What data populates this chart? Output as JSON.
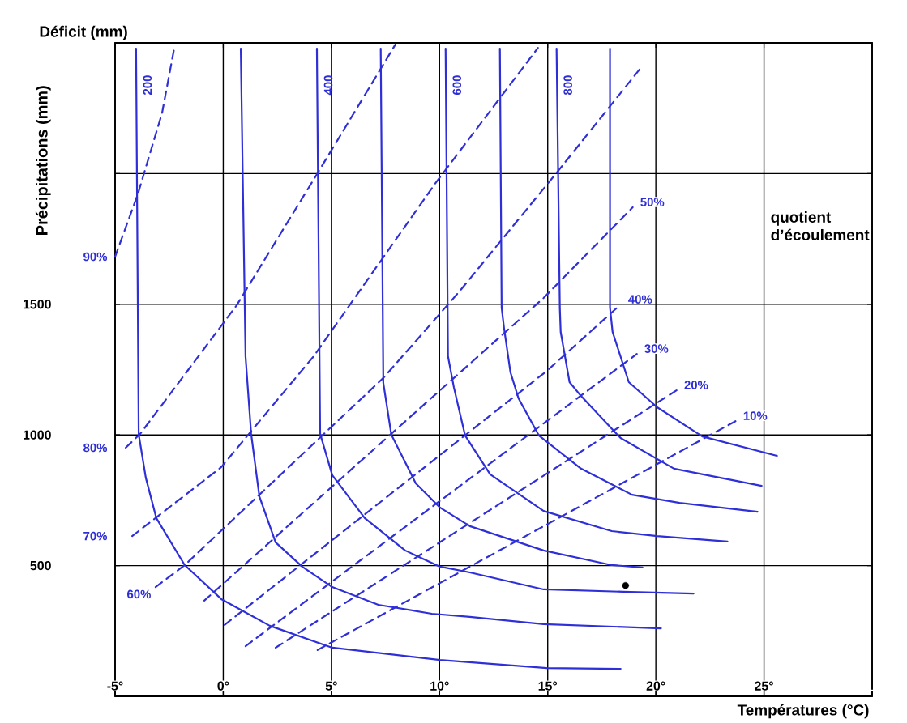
{
  "chart_data": {
    "type": "line",
    "xlabel": "Températures (°C)",
    "ylabel": "Précipitations (mm)",
    "annotations": [
      "Déficit (mm)",
      "quotient d’écoulement"
    ],
    "xlim": [
      -5,
      30
    ],
    "ylim": [
      0,
      2500
    ],
    "xticks": [
      {
        "value": -5,
        "label": "-5°"
      },
      {
        "value": 0,
        "label": "0°"
      },
      {
        "value": 5,
        "label": "5°"
      },
      {
        "value": 10,
        "label": "10°"
      },
      {
        "value": 15,
        "label": "15°"
      },
      {
        "value": 20,
        "label": "20°"
      },
      {
        "value": 25,
        "label": "25°"
      },
      {
        "value": 30,
        "label": null
      }
    ],
    "yticks": [
      {
        "value": 0,
        "label": null
      },
      500,
      1000,
      1500,
      {
        "value": 2000,
        "label": null
      },
      {
        "value": 2500,
        "label": null
      }
    ],
    "grid": true,
    "series": [
      {
        "name": "200",
        "color": "#2f2fd8",
        "line_style": "solid",
        "x": [
          -4.03,
          -3.91,
          -3.58,
          -3.09,
          -1.78,
          -0.09,
          2.15,
          5.04,
          10.02,
          14.96,
          18.37
        ],
        "values": [
          2478,
          1003,
          836,
          681,
          502,
          372,
          270,
          186,
          139,
          108,
          105
        ]
      },
      {
        "color": "#2f2fd8",
        "line_style": "solid",
        "x": [
          0.81,
          1.03,
          1.29,
          1.67,
          2.42,
          3.65,
          5.04,
          7.17,
          9.64,
          11.4,
          14.81,
          20.24
        ],
        "values": [
          2478,
          1301,
          1004,
          765,
          589,
          496,
          418,
          350,
          316,
          304,
          276,
          260
        ]
      },
      {
        "name": "400",
        "color": "#2f2fd8",
        "line_style": "solid",
        "x": [
          4.33,
          4.48,
          5.04,
          6.54,
          8.41,
          10.02,
          11.4,
          14.81,
          18.48,
          21.74
        ],
        "values": [
          2478,
          1004,
          846,
          682,
          558,
          496,
          474,
          409,
          400,
          393
        ]
      },
      {
        "color": "#2f2fd8",
        "line_style": "solid",
        "x": [
          7.28,
          7.4,
          7.77,
          8.9,
          10.02,
          11.4,
          14.81,
          17.96,
          19.38
        ],
        "values": [
          2478,
          1199,
          1001,
          815,
          722,
          651,
          558,
          502,
          493
        ]
      },
      {
        "name": "600",
        "color": "#2f2fd8",
        "line_style": "solid",
        "x": [
          10.28,
          10.39,
          10.66,
          11.18,
          12.34,
          14.81,
          17.96,
          20.06,
          23.31
        ],
        "values": [
          2478,
          1301,
          1183,
          998,
          849,
          709,
          632,
          613,
          592
        ]
      },
      {
        "color": "#2f2fd8",
        "line_style": "solid",
        "x": [
          12.79,
          12.87,
          12.98,
          13.28,
          13.65,
          14.59,
          16.54,
          18.9,
          21.1,
          24.7
        ],
        "values": [
          2478,
          1487,
          1410,
          1239,
          1140,
          998,
          871,
          771,
          740,
          706
        ]
      },
      {
        "name": "800",
        "color": "#2f2fd8",
        "line_style": "solid",
        "x": [
          15.41,
          15.56,
          15.6,
          16.01,
          16.54,
          18.37,
          20.84,
          24.89
        ],
        "values": [
          2478,
          1487,
          1394,
          1202,
          1149,
          988,
          871,
          805
        ]
      },
      {
        "color": "#2f2fd8",
        "line_style": "solid",
        "x": [
          17.88,
          17.88,
          18.0,
          18.75,
          20.06,
          22.15,
          25.6
        ],
        "values": [
          2478,
          1487,
          1394,
          1202,
          1106,
          994,
          920
        ]
      },
      {
        "name": "90%",
        "color": "#2f2fd8",
        "line_style": "dashed",
        "x": [
          -5,
          -3.95,
          -2.83,
          -2.27
        ],
        "values": [
          1682,
          1921,
          2231,
          2478
        ]
      },
      {
        "name": "80%",
        "color": "#2f2fd8",
        "line_style": "dashed",
        "x": [
          -4.51,
          -3.84,
          0.62,
          4.29,
          7.96
        ],
        "values": [
          951,
          1004,
          1496,
          1992,
          2494
        ]
      },
      {
        "name": "70%",
        "color": "#2f2fd8",
        "line_style": "dashed",
        "x": [
          -4.21,
          -0.09,
          4.18,
          9.79,
          14.55
        ],
        "values": [
          613,
          877,
          1301,
          1961,
          2481
        ]
      },
      {
        "name": "60%",
        "color": "#2f2fd8",
        "line_style": "dashed",
        "x": [
          -3.13,
          -1.78,
          7.4,
          10.92,
          15.49,
          19.27
        ],
        "values": [
          418,
          502,
          1218,
          1549,
          2011,
          2401
        ]
      },
      {
        "name": "50%",
        "color": "#2f2fd8",
        "line_style": "dashed",
        "x": [
          -0.88,
          14.81,
          18.93
        ],
        "values": [
          366,
          1524,
          1871
        ]
      },
      {
        "name": "40%",
        "color": "#2f2fd8",
        "line_style": "dashed",
        "x": [
          0.06,
          14.96,
          18.37
        ],
        "values": [
          273,
          1245,
          1499
        ]
      },
      {
        "name": "30%",
        "color": "#2f2fd8",
        "line_style": "dashed",
        "x": [
          1.03,
          19.12
        ],
        "values": [
          192,
          1310
        ]
      },
      {
        "name": "20%",
        "color": "#2f2fd8",
        "line_style": "dashed",
        "x": [
          2.42,
          20.96
        ],
        "values": [
          186,
          1171
        ]
      },
      {
        "name": "10%",
        "color": "#2f2fd8",
        "line_style": "dashed",
        "x": [
          4.36,
          23.69
        ],
        "values": [
          177,
          1053
        ]
      },
      {
        "type": "scatter",
        "marker": "circle",
        "color": "#000000",
        "x": [
          18.6
        ],
        "values": [
          424
        ]
      }
    ]
  }
}
